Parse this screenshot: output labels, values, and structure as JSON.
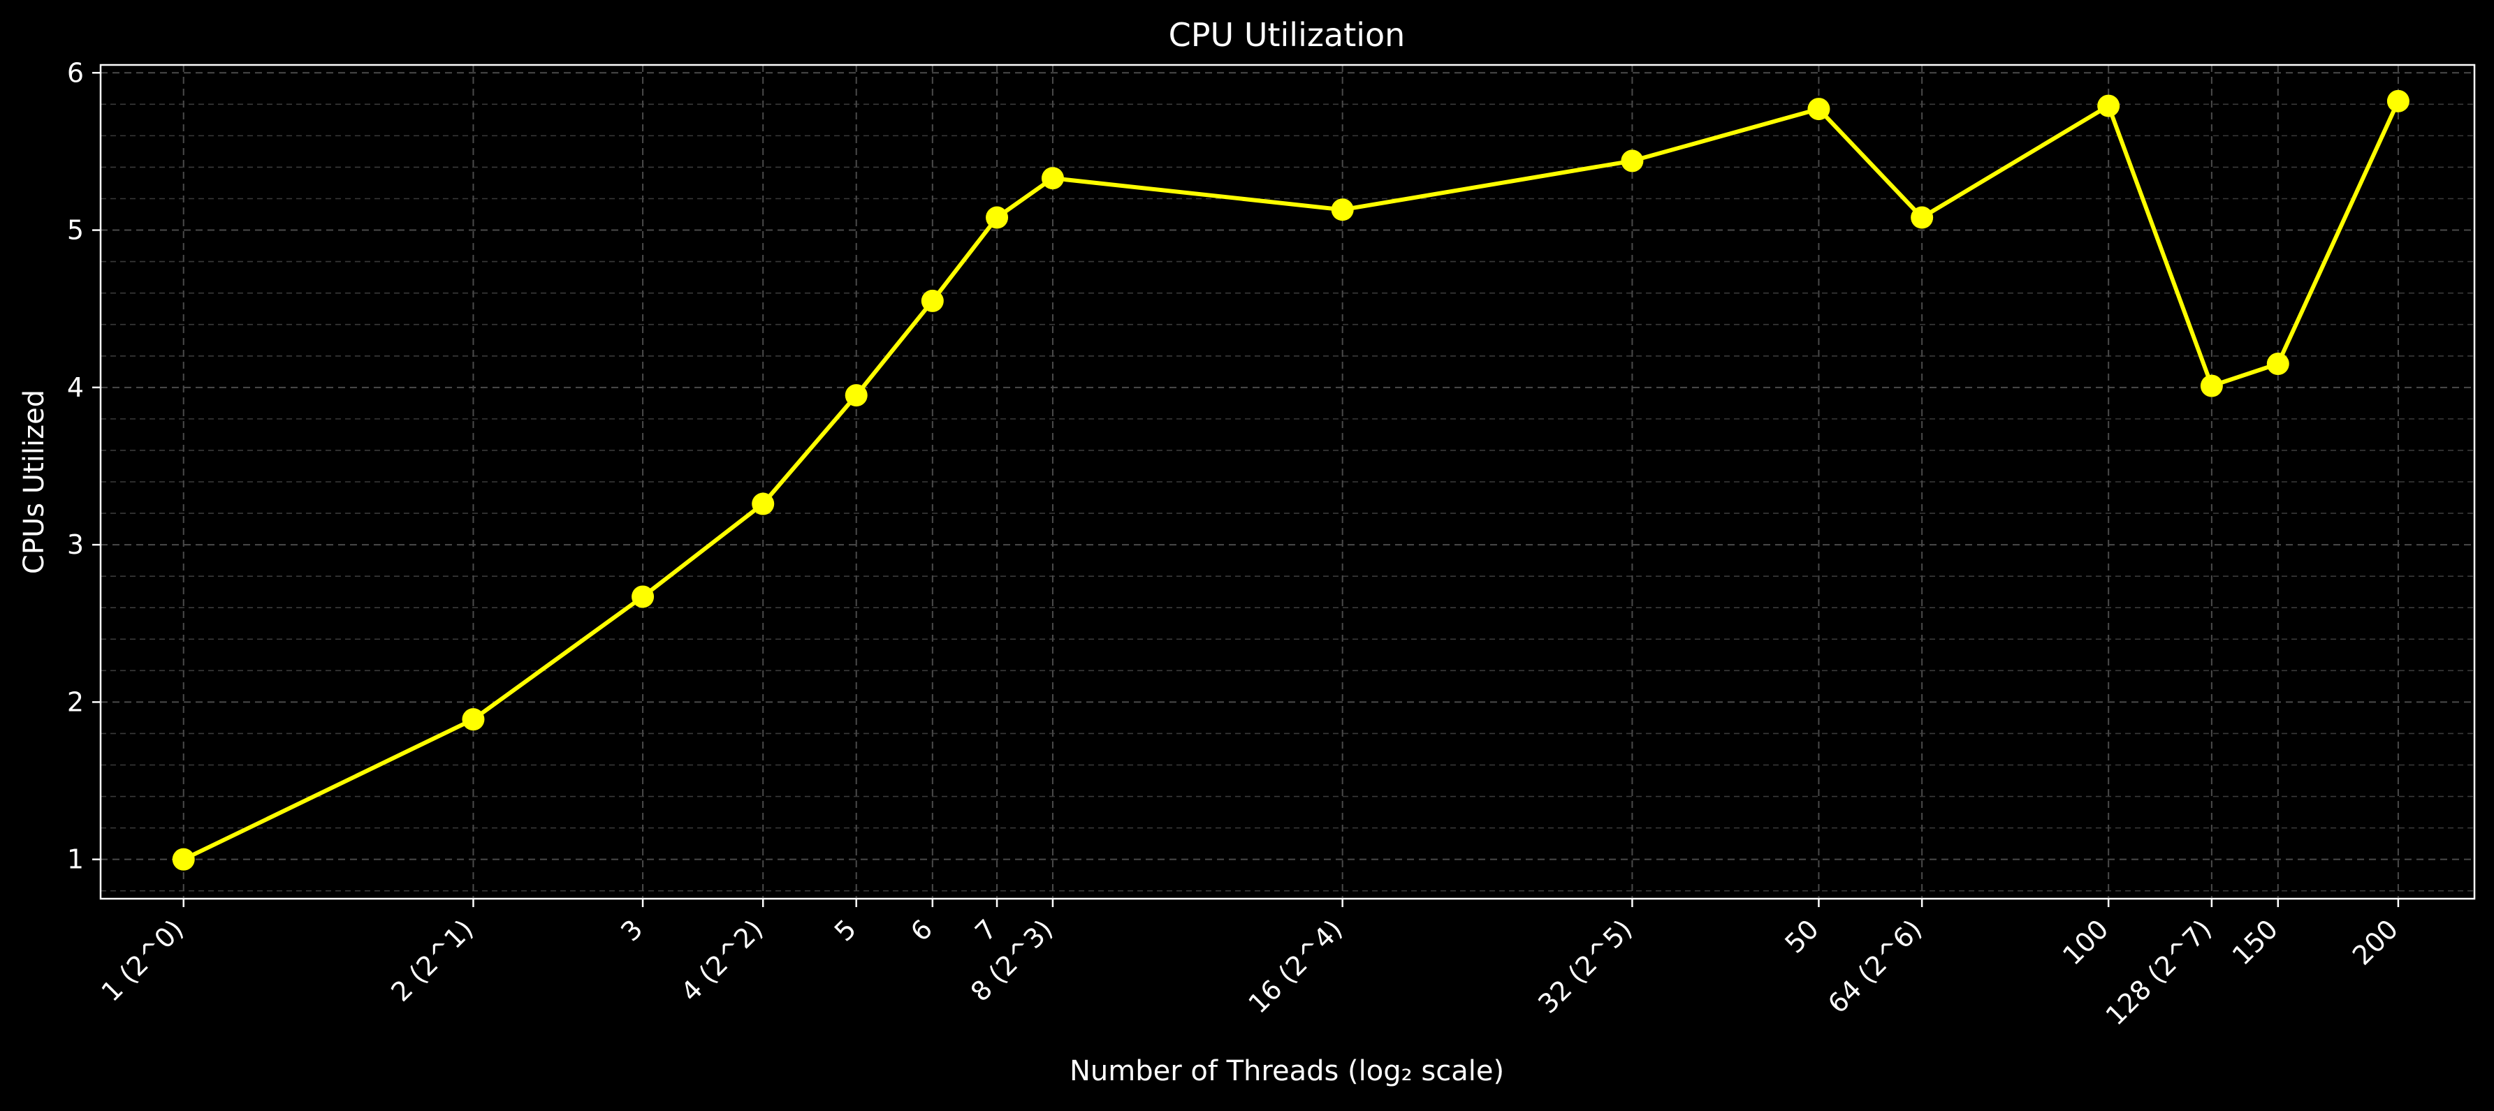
{
  "chart_data": {
    "type": "line",
    "title": "CPU Utilization",
    "xlabel": "Number of Threads (log₂ scale)",
    "ylabel": "CPUs Utilized",
    "x_scale": "log2",
    "xlim": [
      0.82,
      240
    ],
    "ylim": [
      0.75,
      6.05
    ],
    "grid": true,
    "grid_minor": true,
    "x_ticks": [
      1,
      2,
      3,
      4,
      5,
      6,
      7,
      8,
      16,
      32,
      50,
      64,
      100,
      128,
      150,
      200
    ],
    "x_tick_labels": [
      "1 (2^0)",
      "2 (2^1)",
      "3",
      "4 (2^2)",
      "5",
      "6",
      "7",
      "8 (2^3)",
      "16 (2^4)",
      "32 (2^5)",
      "50",
      "64 (2^6)",
      "100",
      "128 (2^7)",
      "150",
      "200"
    ],
    "y_ticks": [
      1,
      2,
      3,
      4,
      5,
      6
    ],
    "y_tick_labels": [
      "1",
      "2",
      "3",
      "4",
      "5",
      "6"
    ],
    "series": [
      {
        "color": "#ffff00",
        "points": [
          {
            "x": 1,
            "y": 1.0
          },
          {
            "x": 2,
            "y": 1.89
          },
          {
            "x": 3,
            "y": 2.67
          },
          {
            "x": 4,
            "y": 3.26
          },
          {
            "x": 5,
            "y": 3.95
          },
          {
            "x": 6,
            "y": 4.55
          },
          {
            "x": 7,
            "y": 5.08
          },
          {
            "x": 8,
            "y": 5.33
          },
          {
            "x": 16,
            "y": 5.13
          },
          {
            "x": 32,
            "y": 5.44
          },
          {
            "x": 50,
            "y": 5.77
          },
          {
            "x": 64,
            "y": 5.08
          },
          {
            "x": 100,
            "y": 5.79
          },
          {
            "x": 128,
            "y": 4.01
          },
          {
            "x": 150,
            "y": 4.15
          },
          {
            "x": 200,
            "y": 5.82
          }
        ]
      }
    ]
  }
}
